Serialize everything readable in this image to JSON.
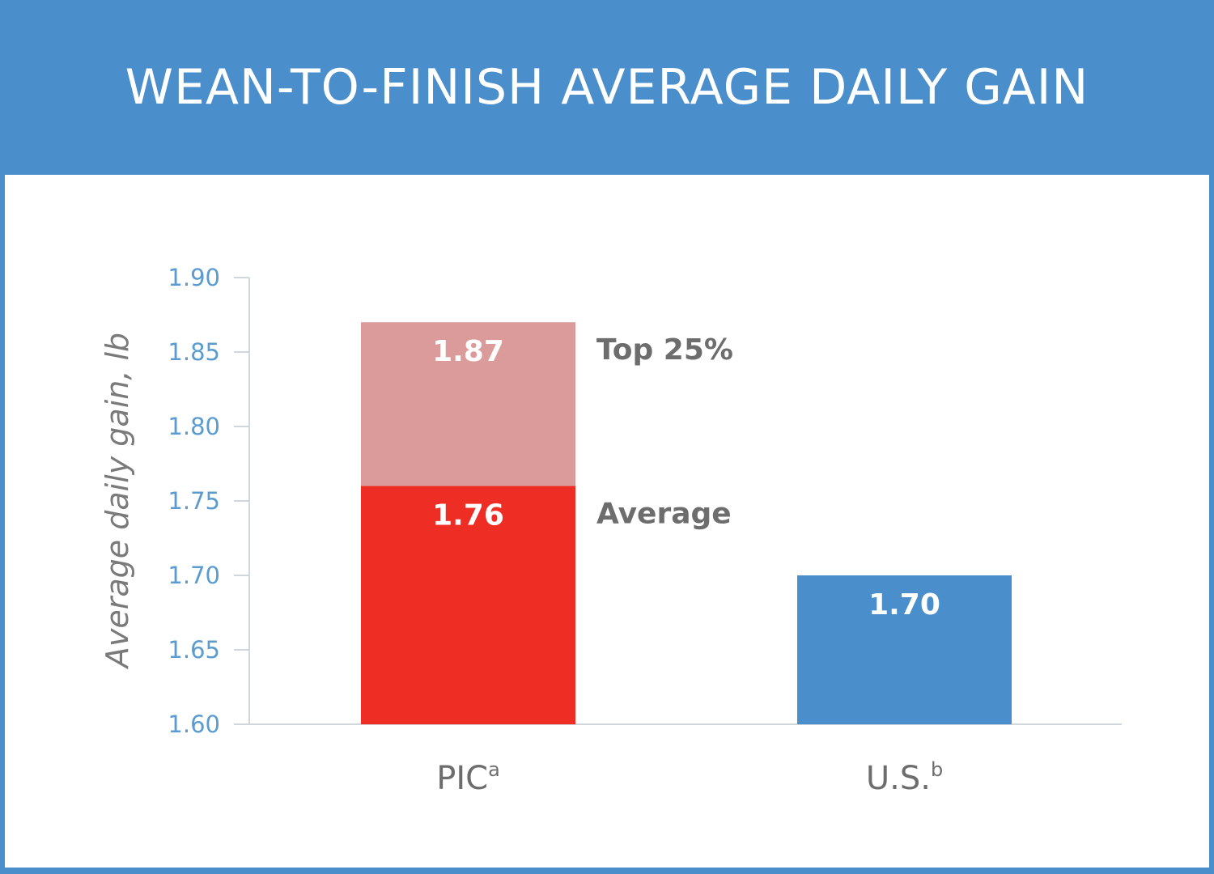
{
  "header": {
    "title": "WEAN-TO-FINISH AVERAGE DAILY GAIN"
  },
  "chart_data": {
    "type": "bar",
    "title": "WEAN-TO-FINISH AVERAGE DAILY GAIN",
    "ylabel": "Average daily gain, lb",
    "xlabel": "",
    "ylim": [
      1.6,
      1.9
    ],
    "yticks": [
      "1.90",
      "1.85",
      "1.80",
      "1.75",
      "1.70",
      "1.65",
      "1.60"
    ],
    "categories": [
      "PIC",
      "U.S."
    ],
    "category_superscripts": [
      "a",
      "b"
    ],
    "bars": [
      {
        "category": "PIC",
        "value": 1.87,
        "label": "1.87",
        "annotation": "Top 25%",
        "color": "#dc9b9b"
      },
      {
        "category": "PIC",
        "value": 1.76,
        "label": "1.76",
        "annotation": "Average",
        "color": "#ee2e24"
      },
      {
        "category": "U.S.",
        "value": 1.7,
        "label": "1.70",
        "annotation": "",
        "color": "#4a8fcb"
      }
    ],
    "grid": false,
    "legend": "none"
  }
}
